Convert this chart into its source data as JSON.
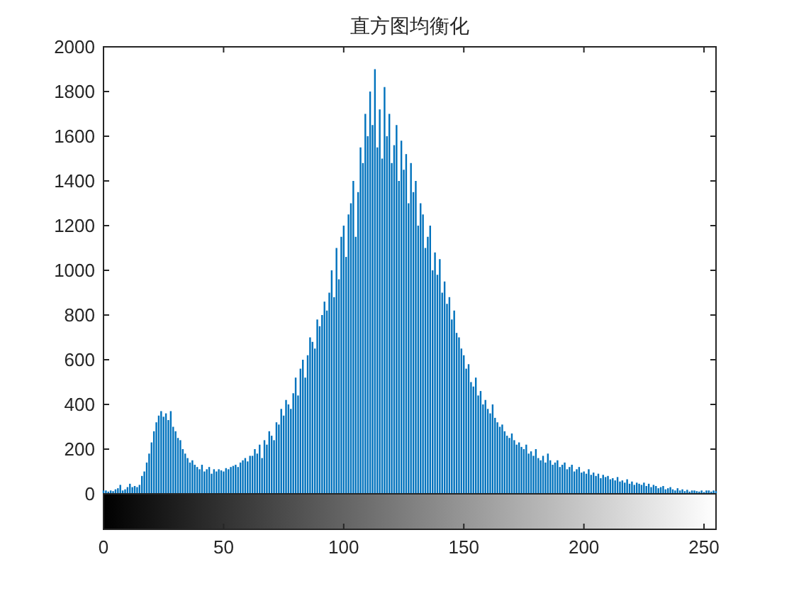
{
  "chart_data": {
    "type": "bar",
    "title": "直方图均衡化",
    "x": [
      0,
      1,
      2,
      3,
      4,
      5,
      6,
      7,
      8,
      9,
      10,
      11,
      12,
      13,
      14,
      15,
      16,
      17,
      18,
      19,
      20,
      21,
      22,
      23,
      24,
      25,
      26,
      27,
      28,
      29,
      30,
      31,
      32,
      33,
      34,
      35,
      36,
      37,
      38,
      39,
      40,
      41,
      42,
      43,
      44,
      45,
      46,
      47,
      48,
      49,
      50,
      51,
      52,
      53,
      54,
      55,
      56,
      57,
      58,
      59,
      60,
      61,
      62,
      63,
      64,
      65,
      66,
      67,
      68,
      69,
      70,
      71,
      72,
      73,
      74,
      75,
      76,
      77,
      78,
      79,
      80,
      81,
      82,
      83,
      84,
      85,
      86,
      87,
      88,
      89,
      90,
      91,
      92,
      93,
      94,
      95,
      96,
      97,
      98,
      99,
      100,
      101,
      102,
      103,
      104,
      105,
      106,
      107,
      108,
      109,
      110,
      111,
      112,
      113,
      114,
      115,
      116,
      117,
      118,
      119,
      120,
      121,
      122,
      123,
      124,
      125,
      126,
      127,
      128,
      129,
      130,
      131,
      132,
      133,
      134,
      135,
      136,
      137,
      138,
      139,
      140,
      141,
      142,
      143,
      144,
      145,
      146,
      147,
      148,
      149,
      150,
      151,
      152,
      153,
      154,
      155,
      156,
      157,
      158,
      159,
      160,
      161,
      162,
      163,
      164,
      165,
      166,
      167,
      168,
      169,
      170,
      171,
      172,
      173,
      174,
      175,
      176,
      177,
      178,
      179,
      180,
      181,
      182,
      183,
      184,
      185,
      186,
      187,
      188,
      189,
      190,
      191,
      192,
      193,
      194,
      195,
      196,
      197,
      198,
      199,
      200,
      201,
      202,
      203,
      204,
      205,
      206,
      207,
      208,
      209,
      210,
      211,
      212,
      213,
      214,
      215,
      216,
      217,
      218,
      219,
      220,
      221,
      222,
      223,
      224,
      225,
      226,
      227,
      228,
      229,
      230,
      231,
      232,
      233,
      234,
      235,
      236,
      237,
      238,
      239,
      240,
      241,
      242,
      243,
      244,
      245,
      246,
      247,
      248,
      249,
      250,
      251,
      252,
      253,
      254,
      255
    ],
    "values": [
      15,
      15,
      10,
      15,
      12,
      20,
      25,
      40,
      15,
      20,
      30,
      45,
      30,
      35,
      30,
      40,
      80,
      100,
      140,
      180,
      230,
      280,
      320,
      350,
      370,
      345,
      360,
      330,
      370,
      300,
      280,
      250,
      240,
      200,
      180,
      160,
      140,
      150,
      130,
      120,
      110,
      130,
      100,
      110,
      120,
      90,
      110,
      100,
      110,
      105,
      100,
      115,
      110,
      120,
      125,
      130,
      120,
      140,
      150,
      160,
      145,
      170,
      170,
      200,
      180,
      220,
      160,
      240,
      220,
      280,
      260,
      240,
      320,
      310,
      380,
      350,
      420,
      400,
      380,
      450,
      520,
      440,
      560,
      600,
      520,
      620,
      700,
      680,
      650,
      780,
      750,
      800,
      860,
      820,
      900,
      1000,
      880,
      1100,
      960,
      1150,
      1200,
      1060,
      1250,
      1300,
      1400,
      1150,
      1350,
      1550,
      1480,
      1700,
      1600,
      1800,
      1650,
      1900,
      1550,
      1720,
      1500,
      1820,
      1600,
      1700,
      1480,
      1560,
      1650,
      1400,
      1580,
      1450,
      1520,
      1300,
      1480,
      1350,
      1400,
      1200,
      1300,
      1250,
      1100,
      1150,
      1200,
      1000,
      1080,
      980,
      1050,
      900,
      950,
      850,
      880,
      780,
      820,
      720,
      700,
      650,
      620,
      560,
      580,
      500,
      480,
      520,
      440,
      460,
      400,
      420,
      380,
      360,
      400,
      340,
      320,
      300,
      310,
      280,
      260,
      250,
      270,
      240,
      220,
      230,
      210,
      200,
      220,
      180,
      190,
      170,
      200,
      160,
      150,
      170,
      140,
      180,
      150,
      130,
      140,
      150,
      120,
      130,
      140,
      110,
      120,
      130,
      100,
      110,
      120,
      95,
      100,
      90,
      110,
      85,
      95,
      80,
      90,
      70,
      85,
      75,
      80,
      65,
      70,
      60,
      75,
      55,
      60,
      50,
      65,
      45,
      55,
      40,
      50,
      45,
      40,
      50,
      35,
      45,
      30,
      40,
      35,
      25,
      30,
      35,
      20,
      25,
      30,
      20,
      15,
      25,
      15,
      20,
      12,
      18,
      10,
      15,
      15,
      12,
      10,
      15,
      8,
      15,
      15,
      10,
      15,
      12
    ],
    "color": "#0072bd",
    "xlim": [
      0,
      255
    ],
    "ylim": [
      0,
      2000
    ],
    "xticks": [
      0,
      50,
      100,
      150,
      200,
      250
    ],
    "yticks": [
      0,
      200,
      400,
      600,
      800,
      1000,
      1200,
      1400,
      1600,
      1800,
      2000
    ]
  }
}
